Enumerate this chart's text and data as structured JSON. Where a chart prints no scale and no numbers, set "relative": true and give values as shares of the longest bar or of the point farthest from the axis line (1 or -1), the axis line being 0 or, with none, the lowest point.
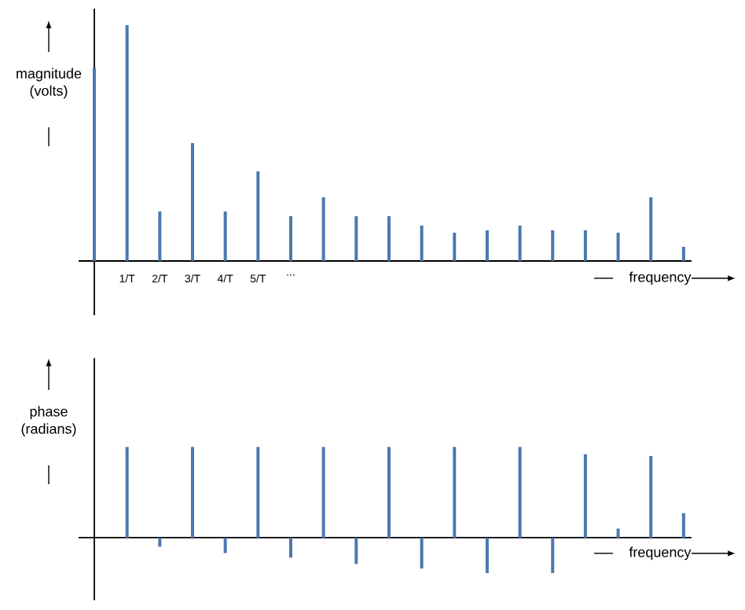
{
  "chart_data": [
    {
      "type": "bar",
      "relative": true,
      "xlabel": "frequency",
      "ylabel": "magnitude (volts)",
      "color": "#4a78b0",
      "categories": [
        null,
        "1/T",
        "2/T",
        "3/T",
        "4/T",
        "5/T",
        "...",
        null,
        null,
        null,
        null,
        null,
        null,
        null,
        null,
        null,
        null,
        null,
        null
      ],
      "values": [
        0.82,
        1,
        0.21,
        0.5,
        0.21,
        0.38,
        0.19,
        0.27,
        0.19,
        0.19,
        0.15,
        0.12,
        0.13,
        0.15,
        0.13,
        0.13,
        0.12,
        0.27,
        0.06
      ]
    },
    {
      "type": "bar",
      "relative": true,
      "xlabel": "frequency",
      "ylabel": "phase (radians)",
      "color": "#4a78b0",
      "categories": [
        null,
        null,
        null,
        null,
        null,
        null,
        null,
        null,
        null,
        null,
        null,
        null,
        null,
        null,
        null,
        null,
        null,
        null,
        null
      ],
      "values": [
        null,
        1,
        -0.1,
        1,
        -0.17,
        1,
        -0.22,
        1,
        -0.29,
        1,
        -0.34,
        1,
        -0.39,
        1,
        -0.39,
        0.92,
        0.1,
        0.9,
        0.27
      ]
    }
  ]
}
